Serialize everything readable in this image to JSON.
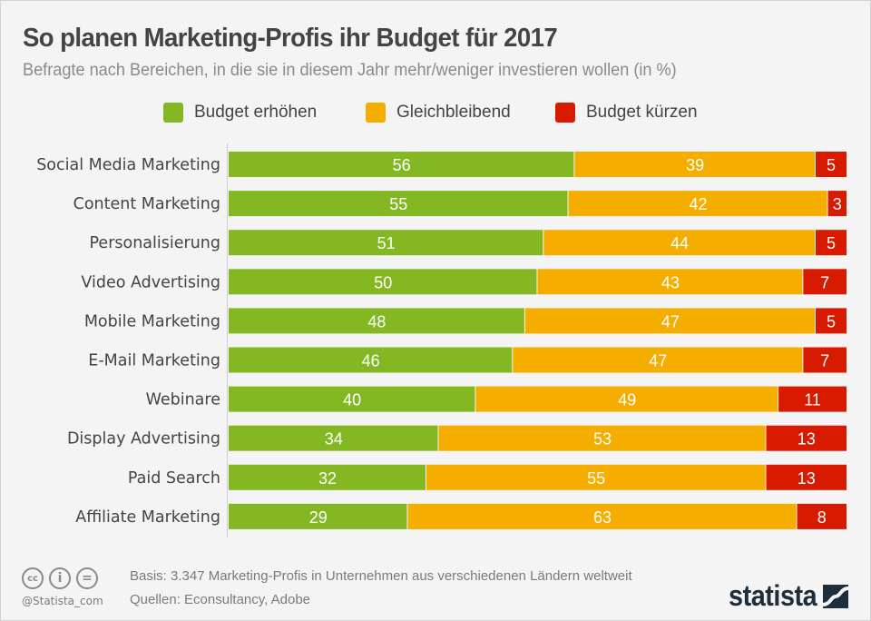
{
  "header": {
    "title": "So planen Marketing-Profis ihr Budget für 2017",
    "subtitle": "Befragte nach Bereichen, in die sie in diesem Jahr mehr/weniger investieren wollen (in %)"
  },
  "colors": {
    "increase": "#84b823",
    "same": "#f5ae00",
    "decrease": "#d71a00",
    "background": "#f4f4f4",
    "text": "#444444",
    "brand": "#1e2d3b"
  },
  "chart_data": {
    "type": "bar",
    "orientation": "horizontal",
    "stacked": true,
    "title": "So planen Marketing-Profis ihr Budget für 2017",
    "subtitle": "Befragte nach Bereichen, in die sie in diesem Jahr mehr/weniger investieren wollen (in %)",
    "xlabel": "",
    "ylabel": "",
    "xlim": [
      0,
      100
    ],
    "unit": "%",
    "grid": false,
    "legend_position": "top-center",
    "categories": [
      "Social Media Marketing",
      "Content Marketing",
      "Personalisierung",
      "Video Advertising",
      "Mobile Marketing",
      "E-Mail Marketing",
      "Webinare",
      "Display Advertising",
      "Paid Search",
      "Affiliate Marketing"
    ],
    "series": [
      {
        "name": "Budget erhöhen",
        "color": "#84b823",
        "values": [
          56,
          55,
          51,
          50,
          48,
          46,
          40,
          34,
          32,
          29
        ]
      },
      {
        "name": "Gleichbleibend",
        "color": "#f5ae00",
        "values": [
          39,
          42,
          44,
          43,
          47,
          47,
          49,
          53,
          55,
          63
        ]
      },
      {
        "name": "Budget kürzen",
        "color": "#d71a00",
        "values": [
          5,
          3,
          5,
          7,
          5,
          7,
          11,
          13,
          13,
          8
        ]
      }
    ]
  },
  "footer": {
    "basis": "Basis: 3.347 Marketing-Profis in Unternehmen aus verschiedenen Ländern weltweit",
    "sources": "Quellen: Econsultancy, Adobe",
    "handle": "@Statista_com",
    "license_icons": [
      "cc-icon",
      "by-icon",
      "nd-icon"
    ],
    "cc_glyph": "cc",
    "by_glyph": "i",
    "nd_glyph": "=",
    "logo_text": "statista"
  }
}
